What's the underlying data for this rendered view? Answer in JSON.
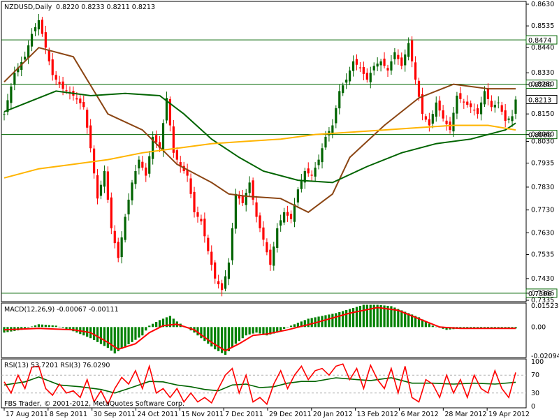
{
  "chart_data": [
    {
      "type": "candlestick",
      "symbol_header": "NZDUSD,Daily",
      "ohlc_header": "0.8220 0.8233 0.8211 0.8213",
      "ylim": [
        0.7335,
        0.863
      ],
      "y_ticks": [
        "0.8630",
        "0.8535",
        "0.8440",
        "0.8330",
        "0.8280",
        "0.8213",
        "0.8150",
        "0.8060",
        "0.8030",
        "0.7935",
        "0.7830",
        "0.7730",
        "0.7630",
        "0.7535",
        "0.7430",
        "0.7366",
        "0.7335"
      ],
      "horizontal_lines": [
        {
          "value": 0.8474,
          "label": "0.8474"
        },
        {
          "value": 0.828,
          "label": "0.8280"
        },
        {
          "value": 0.806,
          "label": "0.8060"
        },
        {
          "value": 0.7366,
          "label": "0.7366"
        }
      ],
      "current_price": {
        "value": 0.8213,
        "label": "0.8213"
      },
      "x_labels": [
        "17 Aug 2011",
        "8 Sep 2011",
        "30 Sep 2011",
        "24 Oct 2011",
        "15 Nov 2011",
        "7 Dec 2011",
        "29 Dec 2011",
        "20 Jan 2012",
        "13 Feb 2012",
        "6 Mar 2012",
        "28 Mar 2012",
        "19 Apr 2012"
      ],
      "close_path": [
        [
          0,
          0.815
        ],
        [
          3,
          0.833
        ],
        [
          6,
          0.84
        ],
        [
          8,
          0.85
        ],
        [
          10,
          0.856
        ],
        [
          12,
          0.844
        ],
        [
          14,
          0.832
        ],
        [
          17,
          0.826
        ],
        [
          20,
          0.823
        ],
        [
          23,
          0.818
        ],
        [
          25,
          0.8
        ],
        [
          27,
          0.778
        ],
        [
          29,
          0.79
        ],
        [
          31,
          0.765
        ],
        [
          33,
          0.752
        ],
        [
          35,
          0.77
        ],
        [
          37,
          0.785
        ],
        [
          39,
          0.795
        ],
        [
          41,
          0.788
        ],
        [
          43,
          0.805
        ],
        [
          45,
          0.8
        ],
        [
          47,
          0.822
        ],
        [
          49,
          0.798
        ],
        [
          51,
          0.792
        ],
        [
          53,
          0.788
        ],
        [
          55,
          0.772
        ],
        [
          57,
          0.768
        ],
        [
          59,
          0.755
        ],
        [
          61,
          0.743
        ],
        [
          63,
          0.738
        ],
        [
          65,
          0.75
        ],
        [
          67,
          0.78
        ],
        [
          69,
          0.776
        ],
        [
          71,
          0.785
        ],
        [
          73,
          0.77
        ],
        [
          75,
          0.76
        ],
        [
          77,
          0.749
        ],
        [
          79,
          0.765
        ],
        [
          81,
          0.772
        ],
        [
          83,
          0.769
        ],
        [
          85,
          0.782
        ],
        [
          87,
          0.79
        ],
        [
          89,
          0.788
        ],
        [
          91,
          0.795
        ],
        [
          93,
          0.805
        ],
        [
          95,
          0.81
        ],
        [
          97,
          0.825
        ],
        [
          99,
          0.83
        ],
        [
          101,
          0.838
        ],
        [
          103,
          0.835
        ],
        [
          105,
          0.83
        ],
        [
          107,
          0.836
        ],
        [
          109,
          0.838
        ],
        [
          111,
          0.834
        ],
        [
          113,
          0.842
        ],
        [
          115,
          0.836
        ],
        [
          117,
          0.846
        ],
        [
          119,
          0.83
        ],
        [
          121,
          0.815
        ],
        [
          123,
          0.81
        ],
        [
          125,
          0.82
        ],
        [
          127,
          0.813
        ],
        [
          129,
          0.808
        ],
        [
          131,
          0.823
        ],
        [
          133,
          0.82
        ],
        [
          135,
          0.818
        ],
        [
          137,
          0.815
        ],
        [
          139,
          0.825
        ],
        [
          141,
          0.818
        ],
        [
          143,
          0.82
        ],
        [
          145,
          0.812
        ],
        [
          147,
          0.814
        ],
        [
          148,
          0.8213
        ]
      ],
      "series": [
        {
          "name": "MA fast (brown)",
          "color": "#8B4513",
          "points": [
            [
              0,
              0.829
            ],
            [
              10,
              0.844
            ],
            [
              20,
              0.84
            ],
            [
              30,
              0.815
            ],
            [
              40,
              0.808
            ],
            [
              50,
              0.793
            ],
            [
              60,
              0.785
            ],
            [
              65,
              0.78
            ],
            [
              70,
              0.779
            ],
            [
              80,
              0.778
            ],
            [
              88,
              0.772
            ],
            [
              95,
              0.78
            ],
            [
              100,
              0.796
            ],
            [
              110,
              0.81
            ],
            [
              120,
              0.822
            ],
            [
              130,
              0.828
            ],
            [
              140,
              0.826
            ],
            [
              148,
              0.826
            ]
          ]
        },
        {
          "name": "MA medium (green)",
          "color": "#006400",
          "points": [
            [
              0,
              0.816
            ],
            [
              15,
              0.825
            ],
            [
              25,
              0.823
            ],
            [
              35,
              0.824
            ],
            [
              45,
              0.823
            ],
            [
              52,
              0.815
            ],
            [
              60,
              0.804
            ],
            [
              68,
              0.796
            ],
            [
              75,
              0.79
            ],
            [
              85,
              0.786
            ],
            [
              95,
              0.785
            ],
            [
              105,
              0.792
            ],
            [
              115,
              0.798
            ],
            [
              125,
              0.802
            ],
            [
              135,
              0.804
            ],
            [
              145,
              0.808
            ],
            [
              148,
              0.811
            ]
          ]
        },
        {
          "name": "MA slow (orange)",
          "color": "#FFB400",
          "points": [
            [
              0,
              0.787
            ],
            [
              10,
              0.791
            ],
            [
              20,
              0.793
            ],
            [
              30,
              0.795
            ],
            [
              40,
              0.798
            ],
            [
              50,
              0.8
            ],
            [
              60,
              0.802
            ],
            [
              70,
              0.803
            ],
            [
              80,
              0.804
            ],
            [
              90,
              0.806
            ],
            [
              100,
              0.807
            ],
            [
              110,
              0.808
            ],
            [
              120,
              0.809
            ],
            [
              130,
              0.81
            ],
            [
              140,
              0.81
            ],
            [
              148,
              0.808
            ]
          ]
        }
      ]
    },
    {
      "type": "bar",
      "label": "MACD(12,26,9) -0.00067 -0.00111",
      "ylim": [
        -0.02094,
        0.01523
      ],
      "y_ticks": [
        "0.01523",
        "0.00",
        "-0.02094"
      ],
      "histogram": [
        [
          0,
          -0.004
        ],
        [
          5,
          -0.002
        ],
        [
          10,
          0.002
        ],
        [
          15,
          0.001
        ],
        [
          20,
          -0.003
        ],
        [
          25,
          -0.008
        ],
        [
          30,
          -0.015
        ],
        [
          32,
          -0.019
        ],
        [
          35,
          -0.014
        ],
        [
          40,
          -0.006
        ],
        [
          42,
          0.001
        ],
        [
          45,
          0.005
        ],
        [
          48,
          0.008
        ],
        [
          50,
          0.004
        ],
        [
          55,
          -0.004
        ],
        [
          58,
          -0.01
        ],
        [
          61,
          -0.016
        ],
        [
          64,
          -0.02
        ],
        [
          67,
          -0.012
        ],
        [
          70,
          -0.006
        ],
        [
          73,
          -0.004
        ],
        [
          76,
          -0.006
        ],
        [
          79,
          -0.004
        ],
        [
          82,
          0.0
        ],
        [
          85,
          0.003
        ],
        [
          88,
          0.006
        ],
        [
          92,
          0.008
        ],
        [
          96,
          0.01
        ],
        [
          100,
          0.013
        ],
        [
          104,
          0.016
        ],
        [
          108,
          0.016
        ],
        [
          112,
          0.015
        ],
        [
          116,
          0.011
        ],
        [
          120,
          0.007
        ],
        [
          124,
          0.001
        ],
        [
          128,
          -0.002
        ],
        [
          132,
          -0.001
        ],
        [
          136,
          -0.001
        ],
        [
          140,
          -0.001
        ],
        [
          144,
          -0.001
        ],
        [
          148,
          -0.001
        ]
      ],
      "signal_line": [
        [
          0,
          -0.002
        ],
        [
          10,
          -0.001
        ],
        [
          20,
          -0.002
        ],
        [
          25,
          -0.004
        ],
        [
          30,
          -0.011
        ],
        [
          33,
          -0.016
        ],
        [
          38,
          -0.012
        ],
        [
          42,
          -0.004
        ],
        [
          46,
          0.001
        ],
        [
          50,
          0.002
        ],
        [
          55,
          -0.002
        ],
        [
          60,
          -0.011
        ],
        [
          64,
          -0.017
        ],
        [
          68,
          -0.012
        ],
        [
          72,
          -0.006
        ],
        [
          76,
          -0.005
        ],
        [
          82,
          -0.002
        ],
        [
          90,
          0.003
        ],
        [
          100,
          0.01
        ],
        [
          108,
          0.014
        ],
        [
          114,
          0.012
        ],
        [
          120,
          0.006
        ],
        [
          126,
          0.0
        ],
        [
          132,
          -0.001
        ],
        [
          140,
          -0.001
        ],
        [
          148,
          -0.001
        ]
      ]
    },
    {
      "type": "line",
      "label": "RSI(13) 53.7201 RSI(3) 76.0290",
      "ylim": [
        0,
        100
      ],
      "y_ticks": [
        "100",
        "70",
        "30",
        "0"
      ],
      "series": [
        {
          "name": "RSI(13)",
          "color": "#006400",
          "points": [
            [
              0,
              48
            ],
            [
              6,
              55
            ],
            [
              10,
              66
            ],
            [
              16,
              48
            ],
            [
              22,
              44
            ],
            [
              28,
              38
            ],
            [
              32,
              30
            ],
            [
              36,
              40
            ],
            [
              42,
              56
            ],
            [
              46,
              55
            ],
            [
              50,
              48
            ],
            [
              54,
              44
            ],
            [
              58,
              38
            ],
            [
              62,
              35
            ],
            [
              66,
              48
            ],
            [
              70,
              50
            ],
            [
              74,
              42
            ],
            [
              78,
              44
            ],
            [
              82,
              52
            ],
            [
              86,
              56
            ],
            [
              90,
              56
            ],
            [
              96,
              64
            ],
            [
              102,
              60
            ],
            [
              106,
              58
            ],
            [
              112,
              64
            ],
            [
              118,
              52
            ],
            [
              124,
              52
            ],
            [
              130,
              50
            ],
            [
              136,
              52
            ],
            [
              142,
              50
            ],
            [
              148,
              54
            ]
          ]
        },
        {
          "name": "RSI(3)",
          "color": "#FF0000",
          "points": [
            [
              0,
              55
            ],
            [
              2,
              30
            ],
            [
              4,
              70
            ],
            [
              6,
              40
            ],
            [
              8,
              88
            ],
            [
              10,
              90
            ],
            [
              12,
              40
            ],
            [
              14,
              25
            ],
            [
              16,
              50
            ],
            [
              18,
              30
            ],
            [
              20,
              35
            ],
            [
              22,
              20
            ],
            [
              24,
              60
            ],
            [
              26,
              10
            ],
            [
              28,
              35
            ],
            [
              30,
              5
            ],
            [
              32,
              40
            ],
            [
              34,
              65
            ],
            [
              36,
              50
            ],
            [
              38,
              80
            ],
            [
              40,
              40
            ],
            [
              42,
              90
            ],
            [
              44,
              30
            ],
            [
              46,
              40
            ],
            [
              48,
              20
            ],
            [
              50,
              40
            ],
            [
              52,
              10
            ],
            [
              54,
              30
            ],
            [
              56,
              10
            ],
            [
              58,
              20
            ],
            [
              60,
              8
            ],
            [
              62,
              40
            ],
            [
              64,
              70
            ],
            [
              66,
              85
            ],
            [
              68,
              30
            ],
            [
              70,
              70
            ],
            [
              72,
              10
            ],
            [
              74,
              20
            ],
            [
              76,
              5
            ],
            [
              78,
              50
            ],
            [
              80,
              80
            ],
            [
              82,
              40
            ],
            [
              84,
              70
            ],
            [
              86,
              90
            ],
            [
              88,
              60
            ],
            [
              90,
              80
            ],
            [
              92,
              85
            ],
            [
              94,
              70
            ],
            [
              96,
              90
            ],
            [
              98,
              95
            ],
            [
              100,
              60
            ],
            [
              102,
              85
            ],
            [
              104,
              40
            ],
            [
              106,
              92
            ],
            [
              108,
              60
            ],
            [
              110,
              40
            ],
            [
              112,
              85
            ],
            [
              114,
              30
            ],
            [
              116,
              90
            ],
            [
              118,
              20
            ],
            [
              120,
              10
            ],
            [
              122,
              60
            ],
            [
              124,
              50
            ],
            [
              126,
              20
            ],
            [
              128,
              70
            ],
            [
              130,
              30
            ],
            [
              132,
              60
            ],
            [
              134,
              20
            ],
            [
              136,
              70
            ],
            [
              138,
              40
            ],
            [
              140,
              30
            ],
            [
              142,
              80
            ],
            [
              144,
              40
            ],
            [
              146,
              20
            ],
            [
              148,
              76
            ]
          ]
        }
      ]
    }
  ],
  "footer": {
    "copyright": "FBS Trader, © 2001-2012, MetaQuotes Software Corp."
  }
}
